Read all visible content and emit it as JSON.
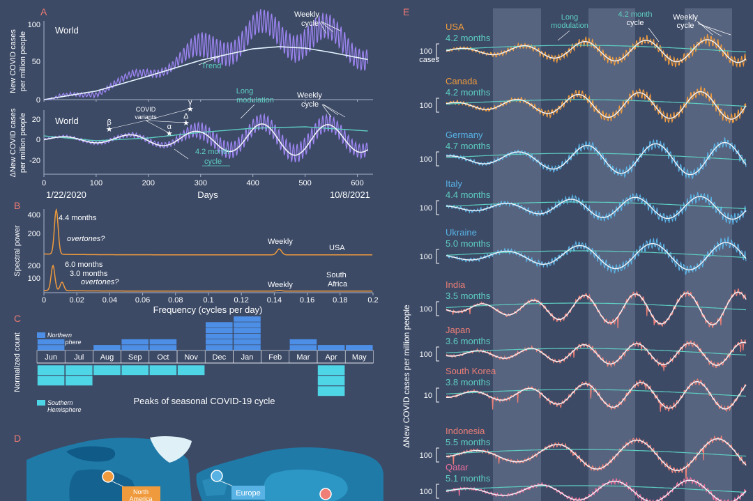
{
  "colors": {
    "bg": "#3c4a66",
    "text": "#ffffff",
    "panel_letter": "#ee7a72",
    "purple": "#9c84f0",
    "teal": "#5ecfc1",
    "white_line": "#f2f5fb",
    "orange": "#ef9a3c",
    "blue": "#58b2e4",
    "salmon": "#ef7f76",
    "pink": "#ef6f9b",
    "north_bar": "#4d8fe6",
    "south_bar": "#4fd6e6",
    "band": "#6d7a93"
  },
  "panel_labels": {
    "a": "A",
    "b": "B",
    "c": "C",
    "d": "D",
    "e": "E"
  },
  "panel_a": {
    "top": {
      "ylabel": [
        "New COVID cases",
        "per million people"
      ],
      "region": "World",
      "trend_label": "Trend",
      "weekly_label": [
        "Weekly",
        "cycle"
      ],
      "yticks": [
        0,
        50,
        100
      ]
    },
    "bottom": {
      "ylabel": [
        "ΔNew COVID cases",
        "per million people"
      ],
      "region": "World",
      "long_mod_label": [
        "Long",
        "modulation"
      ],
      "weekly_label": [
        "Weekly",
        "cycle"
      ],
      "cycle_label": [
        "4.2 month",
        "cycle"
      ],
      "variants_label": [
        "COVID",
        "variants"
      ],
      "variant_symbols": [
        "β",
        "α",
        "Δ",
        "γ"
      ],
      "variant_days": [
        125,
        240,
        272,
        280
      ],
      "yticks": [
        -20,
        0,
        20
      ]
    },
    "xticks": [
      0,
      100,
      200,
      300,
      400,
      500,
      600
    ],
    "xlabel": "Days",
    "start_date": "1/22/2020",
    "end_date": "10/8/2021"
  },
  "panel_b": {
    "ylabel": "Spectral power",
    "xlabel": "Frequency (cycles per day)",
    "xticks": [
      "0",
      "0.02",
      "0.04",
      "0.06",
      "0.08",
      "0.1",
      "0.12",
      "0.14",
      "0.16",
      "0.18",
      "0.2"
    ],
    "usa": {
      "name": "USA",
      "yticks": [
        200,
        400
      ],
      "peak_label": "4.4 months",
      "overtones": "overtones?",
      "weekly": "Weekly"
    },
    "south_africa": {
      "name": [
        "South",
        "Africa"
      ],
      "yticks": [
        100,
        200
      ],
      "peak1": "6.0 months",
      "peak2": "3.0 months",
      "overtones": "overtones?",
      "weekly": "Weekly"
    }
  },
  "panel_c": {
    "ylabel": "Normalized count",
    "title": "Peaks of seasonal COVID-19 cycle",
    "north_legend": [
      "Northern",
      "Hemisphere"
    ],
    "south_legend": [
      "Southern",
      "Hemisphere"
    ],
    "months": [
      "Jun",
      "Jul",
      "Aug",
      "Sep",
      "Oct",
      "Nov",
      "Dec",
      "Jan",
      "Feb",
      "Mar",
      "Apr",
      "May"
    ]
  },
  "panel_d": {
    "labels": {
      "north_america": [
        "North",
        "America"
      ],
      "europe": "Europe"
    }
  },
  "panel_e": {
    "ylabel": "ΔNew COVID cases per million people",
    "legend": {
      "long": [
        "Long",
        "modulation"
      ],
      "cycle": [
        "4.2 month",
        "cycle"
      ],
      "weekly": [
        "Weekly",
        "cycle"
      ]
    },
    "countries": [
      {
        "name": "USA",
        "period": "4.2 months",
        "scale": "100",
        "unit": "cases"
      },
      {
        "name": "Canada",
        "period": "4.2 months",
        "scale": "100"
      },
      {
        "name": "Germany",
        "period": "4.7 months",
        "scale": "100"
      },
      {
        "name": "Italy",
        "period": "4.4 months",
        "scale": "100"
      },
      {
        "name": "Ukraine",
        "period": "5.0 months",
        "scale": "100"
      },
      {
        "name": "India",
        "period": "3.5 months",
        "scale": "100"
      },
      {
        "name": "Japan",
        "period": "3.6 months",
        "scale": "100"
      },
      {
        "name": "South Korea",
        "period": "3.8 months",
        "scale": "10"
      },
      {
        "name": "Indonesia",
        "period": "5.5 months",
        "scale": "100"
      },
      {
        "name": "Qatar",
        "period": "5.1 months",
        "scale": "100"
      }
    ]
  },
  "chart_data": [
    {
      "type": "line",
      "panel": "A-top",
      "xlabel": "Days",
      "ylabel": "New COVID cases per million people",
      "xlim": [
        0,
        630
      ],
      "ylim": [
        0,
        110
      ],
      "series": [
        {
          "name": "Trend",
          "x": [
            0,
            100,
            200,
            300,
            400,
            450,
            500,
            550,
            620
          ],
          "y": [
            0,
            12,
            33,
            55,
            71,
            74,
            72,
            66,
            56
          ]
        }
      ]
    },
    {
      "type": "line",
      "panel": "A-bottom",
      "xlabel": "Days",
      "ylabel": "ΔNew COVID cases per million people",
      "xlim": [
        0,
        630
      ],
      "ylim": [
        -32,
        30
      ],
      "series": [
        {
          "name": "4.2 month cycle",
          "period_days": 127,
          "amplitude": [
            3,
            23
          ]
        }
      ]
    },
    {
      "type": "line",
      "panel": "B",
      "xlabel": "Frequency (cycles per day)",
      "ylabel": "Spectral power",
      "xlim": [
        0,
        0.2
      ],
      "series": [
        {
          "name": "USA",
          "peaks": [
            {
              "f": 0.0075,
              "power": 420
            },
            {
              "f": 0.143,
              "power": 55
            }
          ]
        },
        {
          "name": "South Africa",
          "peaks": [
            {
              "f": 0.0055,
              "power": 280
            },
            {
              "f": 0.011,
              "power": 95
            },
            {
              "f": 0.143,
              "power": 8
            }
          ]
        }
      ]
    },
    {
      "type": "bar",
      "panel": "C",
      "title": "Peaks of seasonal COVID-19 cycle",
      "ylabel": "Normalized count",
      "categories": [
        "Jun",
        "Jul",
        "Aug",
        "Sep",
        "Oct",
        "Nov",
        "Dec",
        "Jan",
        "Feb",
        "Mar",
        "Apr",
        "May"
      ],
      "series": [
        {
          "name": "Northern Hemisphere",
          "values": [
            2,
            0,
            1,
            2,
            2,
            0,
            5,
            6,
            0,
            2,
            1,
            1
          ]
        },
        {
          "name": "Southern Hemisphere",
          "values": [
            2,
            2,
            1,
            1,
            1,
            1,
            0,
            0,
            0,
            0,
            3,
            0
          ]
        }
      ]
    }
  ]
}
